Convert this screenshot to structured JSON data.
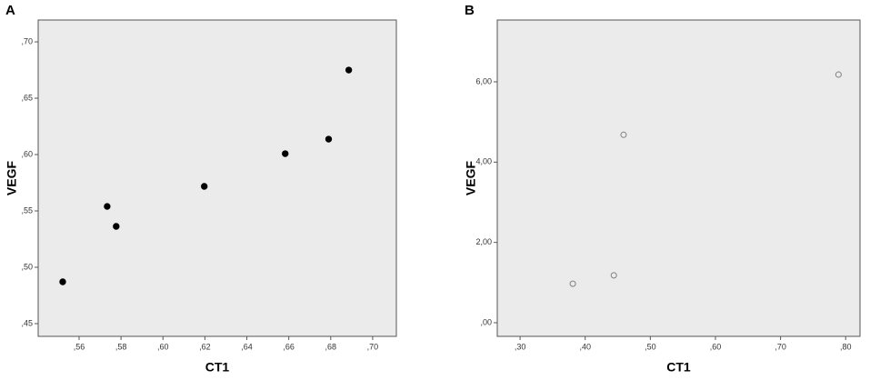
{
  "chart_data": [
    {
      "type": "scatter",
      "panel_label": "A",
      "x_label": "CT1",
      "y_label": "VEGF",
      "x": [
        0.5522,
        0.5734,
        0.5777,
        0.6197,
        0.6583,
        0.679,
        0.6886
      ],
      "series": [
        {
          "color": "#000000",
          "marker": "filled",
          "values": [
            0.4871,
            0.554,
            0.5363,
            0.5718,
            0.6008,
            0.6137,
            0.675
          ]
        }
      ],
      "xlim": [
        0.5405,
        0.7113
      ],
      "ylim": [
        0.4387,
        0.7194
      ],
      "xticks": [
        {
          "value": 0.56,
          "label": ",56"
        },
        {
          "value": 0.58,
          "label": ",58"
        },
        {
          "value": 0.6,
          "label": ",60"
        },
        {
          "value": 0.62,
          "label": ",62"
        },
        {
          "value": 0.64,
          "label": ",64"
        },
        {
          "value": 0.66,
          "label": ",66"
        },
        {
          "value": 0.68,
          "label": ",68"
        },
        {
          "value": 0.7,
          "label": ",70"
        }
      ],
      "yticks": [
        {
          "value": 0.45,
          "label": ",45"
        },
        {
          "value": 0.5,
          "label": ",50"
        },
        {
          "value": 0.55,
          "label": ",55"
        },
        {
          "value": 0.6,
          "label": ",60"
        },
        {
          "value": 0.65,
          "label": ",65"
        },
        {
          "value": 0.7,
          "label": ",70"
        }
      ]
    },
    {
      "type": "scatter",
      "panel_label": "B",
      "x_label": "CT1",
      "y_label": "VEGF",
      "x": [
        0.381,
        0.444,
        0.459,
        0.789
      ],
      "series": [
        {
          "color": "#808080",
          "marker": "open",
          "values": [
            0.97,
            1.18,
            4.68,
            6.18
          ]
        }
      ],
      "xlim": [
        0.265,
        0.822
      ],
      "ylim": [
        -0.34,
        7.54
      ],
      "xticks": [
        {
          "value": 0.3,
          "label": ",30"
        },
        {
          "value": 0.4,
          "label": ",40"
        },
        {
          "value": 0.5,
          "label": ",50"
        },
        {
          "value": 0.6,
          "label": ",60"
        },
        {
          "value": 0.7,
          "label": ",70"
        },
        {
          "value": 0.8,
          "label": ",80"
        }
      ],
      "yticks": [
        {
          "value": 0,
          "label": ",00"
        },
        {
          "value": 2,
          "label": "2,00"
        },
        {
          "value": 4,
          "label": "4,00"
        },
        {
          "value": 6,
          "label": "6,00"
        }
      ]
    }
  ]
}
